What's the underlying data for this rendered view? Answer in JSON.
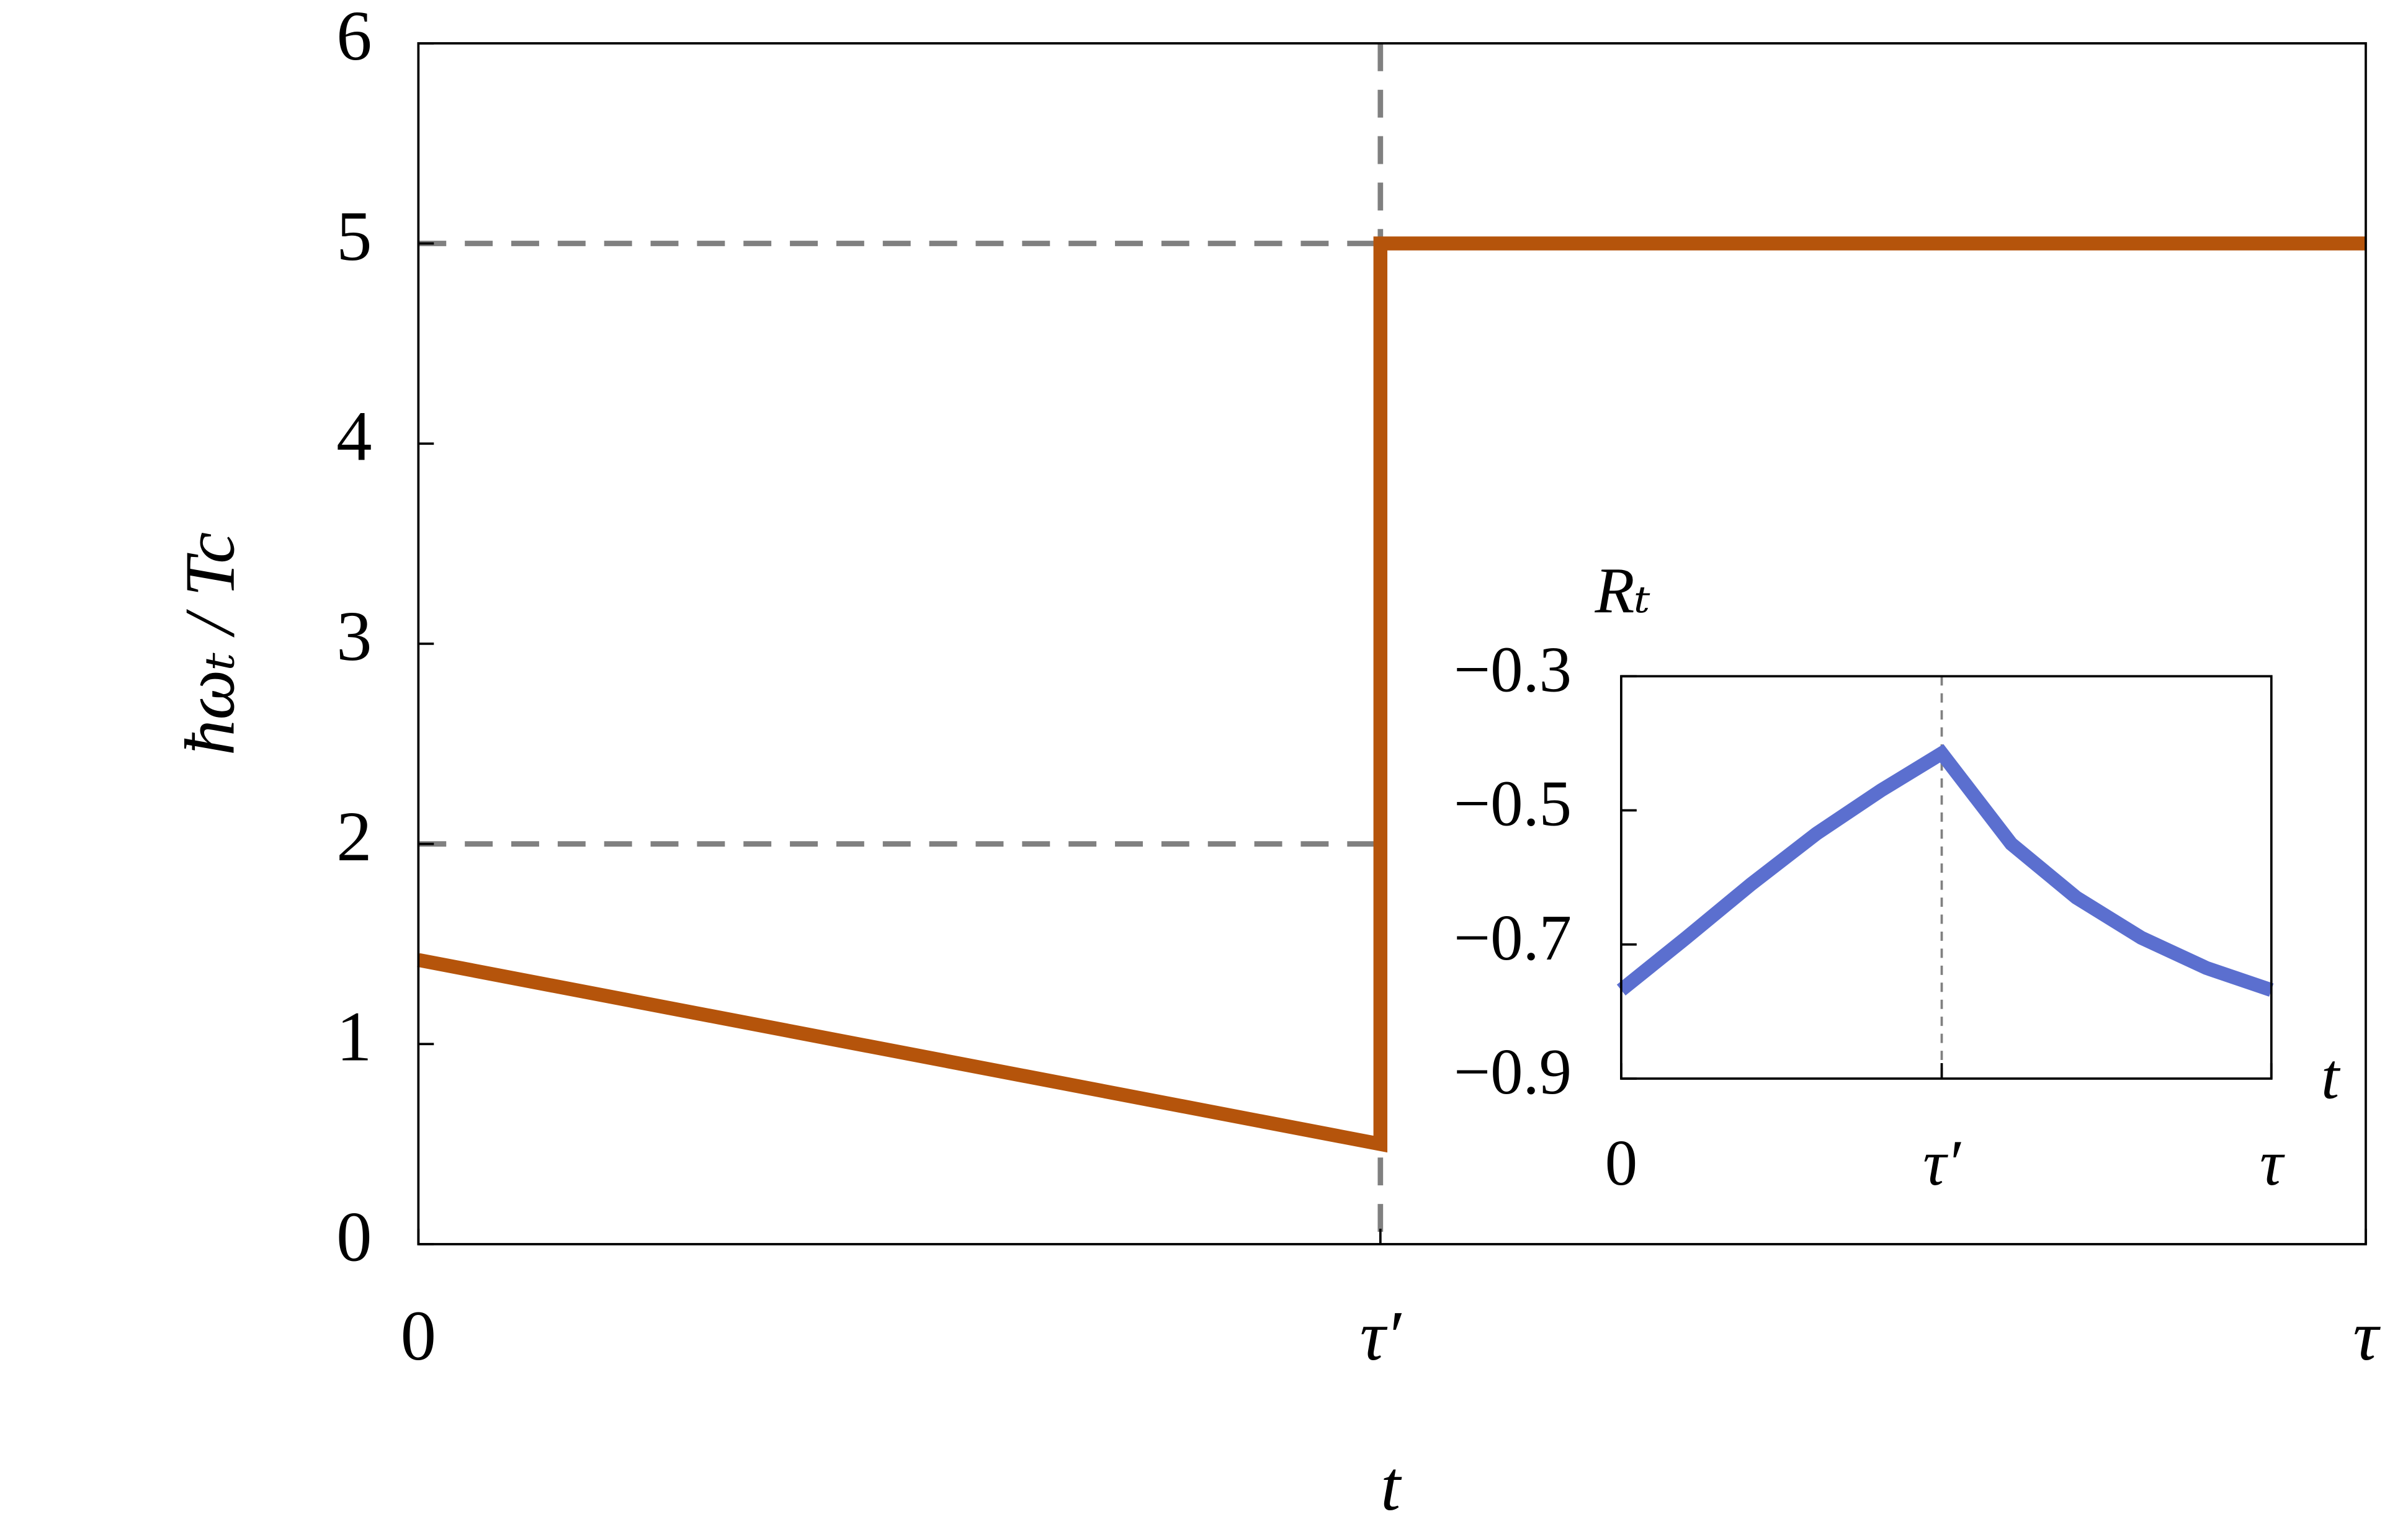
{
  "chart_data": [
    {
      "type": "line",
      "xlabel": "t",
      "ylabel": "ħωₜ / Tc",
      "xlim": [
        0,
        1
      ],
      "xticks": [
        0,
        {
          "value": 0.494,
          "label": "τ′"
        },
        {
          "value": 1,
          "label": "τ"
        }
      ],
      "ylim": [
        0,
        6
      ],
      "yticks": [
        0,
        1,
        2,
        3,
        4,
        5,
        6
      ],
      "ref_lines": {
        "x": [
          0.494
        ],
        "y": [
          5,
          2
        ],
        "color": "#808080",
        "dashed": true
      },
      "series": [
        {
          "name": "ħωₜ",
          "color": "#b5540b",
          "x": [
            0,
            0.494,
            0.494,
            1
          ],
          "values": [
            1.42,
            0.5,
            5,
            5
          ]
        }
      ]
    },
    {
      "type": "line",
      "xlabel": "t",
      "ylabel": "Rₜ",
      "xlim": [
        0,
        1
      ],
      "xticks": [
        0,
        {
          "value": 0.493,
          "label": "τ′"
        },
        {
          "value": 1,
          "label": "τ"
        }
      ],
      "ylim": [
        -0.9,
        -0.3
      ],
      "yticks": [
        {
          "value": -0.3,
          "label": "−0.3"
        },
        {
          "value": -0.5,
          "label": "−0.5"
        },
        {
          "value": -0.7,
          "label": "−0.7"
        },
        {
          "value": -0.9,
          "label": "−0.9"
        }
      ],
      "ref_lines": {
        "x": [
          0.493
        ],
        "color": "#808080",
        "dashed": true
      },
      "series": [
        {
          "name": "Rₜ",
          "color": "#5b6fcf",
          "x": [
            0,
            0.1,
            0.2,
            0.3,
            0.4,
            0.493,
            0.6,
            0.7,
            0.8,
            0.9,
            1
          ],
          "values": [
            -0.768,
            -0.69,
            -0.61,
            -0.535,
            -0.47,
            -0.415,
            -0.55,
            -0.63,
            -0.69,
            -0.735,
            -0.768
          ]
        }
      ]
    }
  ]
}
